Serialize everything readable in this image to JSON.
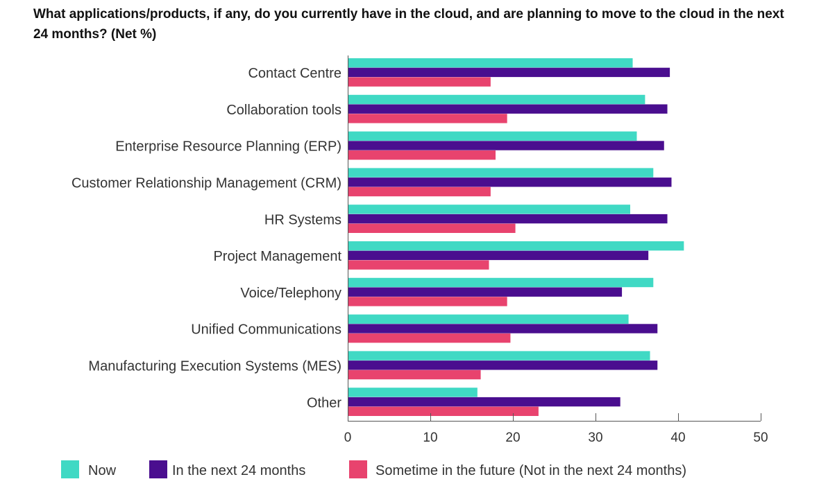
{
  "chart_data": {
    "type": "bar",
    "orientation": "horizontal",
    "title": "What applications/products, if any, do you currently have in the cloud, and are planning to move to the cloud in the next 24 months? (Net %)",
    "categories": [
      "Contact Centre",
      "Collaboration tools",
      "Enterprise Resource Planning (ERP)",
      "Customer Relationship Management (CRM)",
      "HR Systems",
      "Project Management",
      "Voice/Telephony",
      "Unified Communications",
      "Manufacturing Execution Systems (MES)",
      "Other"
    ],
    "series": [
      {
        "name": "Now",
        "color": "#40d9c4",
        "values": [
          34.5,
          36,
          35,
          37,
          34.2,
          40.7,
          37,
          34,
          36.6,
          15.7
        ]
      },
      {
        "name": "In the next 24 months",
        "color": "#4a0e8f",
        "values": [
          39,
          38.7,
          38.3,
          39.2,
          38.7,
          36.4,
          33.2,
          37.5,
          37.5,
          33
        ]
      },
      {
        "name": "Sometime in the future (Not in the next 24 months)",
        "color": "#e8436e",
        "values": [
          17.3,
          19.3,
          17.9,
          17.3,
          20.3,
          17.1,
          19.3,
          19.7,
          16.1,
          23.1
        ]
      }
    ],
    "xlim": [
      0,
      50
    ],
    "xticks": [
      "0",
      "10",
      "20",
      "30",
      "40",
      "50"
    ],
    "grid": false,
    "legend_position": "bottom"
  }
}
